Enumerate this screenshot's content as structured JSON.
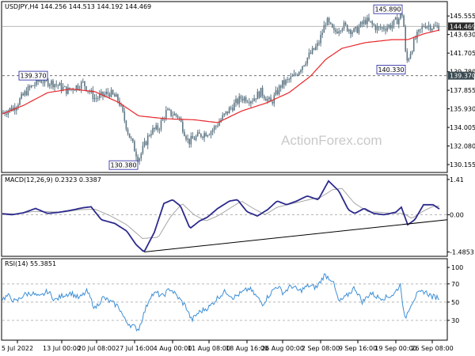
{
  "colors": {
    "candle": "#5f7785",
    "ma": "#e8262a",
    "macd": "#2c2a8c",
    "signal": "#9e9e9e",
    "rsi": "#3d8fd6",
    "callout_border": "#1e1ea0",
    "current_bg": "#2a2a2a",
    "level_bg": "#3a4a52"
  },
  "watermark": "ActionForex.com",
  "chart_data": [
    {
      "type": "candlestick",
      "header": "USDJPY,H4 144.256 144.513 144.192 144.469",
      "symbol": "USDJPY",
      "timeframe": "H4",
      "ohlc": {
        "open": 144.256,
        "high": 144.513,
        "low": 144.192,
        "close": 144.469
      },
      "ylim": [
        129.5,
        146.8
      ],
      "y_ticks": [
        "145.555",
        "143.630",
        "141.705",
        "139.780",
        "137.855",
        "135.930",
        "134.005",
        "132.080",
        "130.155"
      ],
      "current_price": "144.469",
      "horizontal_line": "139.370",
      "annotations": [
        "145.890",
        "140.330",
        "139.370",
        "130.380"
      ],
      "moving_average": "red line",
      "price_anchors": [
        [
          0,
          135.4
        ],
        [
          18,
          136.1
        ],
        [
          35,
          137.9
        ],
        [
          50,
          138.9
        ],
        [
          68,
          138.6
        ],
        [
          85,
          137.8
        ],
        [
          105,
          138.6
        ],
        [
          120,
          137.0
        ],
        [
          138,
          137.6
        ],
        [
          150,
          136.8
        ],
        [
          163,
          133.2
        ],
        [
          175,
          130.7
        ],
        [
          190,
          133.6
        ],
        [
          200,
          133.9
        ],
        [
          210,
          135.6
        ],
        [
          225,
          135.2
        ],
        [
          238,
          132.5
        ],
        [
          252,
          133.2
        ],
        [
          268,
          133.7
        ],
        [
          290,
          135.9
        ],
        [
          305,
          137.1
        ],
        [
          318,
          136.9
        ],
        [
          330,
          137.7
        ],
        [
          342,
          136.5
        ],
        [
          355,
          138.4
        ],
        [
          372,
          139.3
        ],
        [
          388,
          141.2
        ],
        [
          402,
          142.6
        ],
        [
          412,
          145.1
        ],
        [
          422,
          143.8
        ],
        [
          432,
          144.6
        ],
        [
          448,
          143.9
        ],
        [
          462,
          145.1
        ],
        [
          478,
          144.2
        ],
        [
          495,
          144.6
        ],
        [
          505,
          145.4
        ],
        [
          509,
          145.9
        ],
        [
          513,
          140.6
        ],
        [
          524,
          143.1
        ],
        [
          536,
          144.7
        ],
        [
          548,
          144.4
        ],
        [
          555,
          144.47
        ]
      ],
      "ma_anchors": [
        [
          0,
          135.3
        ],
        [
          30,
          136.3
        ],
        [
          60,
          137.6
        ],
        [
          90,
          138.0
        ],
        [
          120,
          137.7
        ],
        [
          150,
          136.6
        ],
        [
          175,
          135.2
        ],
        [
          210,
          134.9
        ],
        [
          245,
          134.8
        ],
        [
          275,
          134.5
        ],
        [
          305,
          135.7
        ],
        [
          335,
          136.5
        ],
        [
          365,
          137.6
        ],
        [
          392,
          139.3
        ],
        [
          412,
          141.1
        ],
        [
          432,
          142.2
        ],
        [
          462,
          142.8
        ],
        [
          495,
          143.1
        ],
        [
          515,
          143.1
        ],
        [
          535,
          143.7
        ],
        [
          555,
          144.1
        ]
      ]
    },
    {
      "type": "line",
      "header": "MACD(12,26,9) 0.2323 0.3387",
      "ylim": [
        -1.6,
        1.5
      ],
      "y_ticks": [
        "1.41",
        "0.00",
        "-1.4853"
      ],
      "macd_anchors": [
        [
          0,
          0.05
        ],
        [
          15,
          0.0
        ],
        [
          30,
          0.08
        ],
        [
          45,
          0.25
        ],
        [
          60,
          0.05
        ],
        [
          75,
          0.1
        ],
        [
          90,
          0.18
        ],
        [
          105,
          0.28
        ],
        [
          115,
          0.32
        ],
        [
          128,
          -0.2
        ],
        [
          145,
          -0.35
        ],
        [
          160,
          -0.65
        ],
        [
          172,
          -1.2
        ],
        [
          182,
          -1.49
        ],
        [
          195,
          -0.7
        ],
        [
          207,
          0.45
        ],
        [
          218,
          0.6
        ],
        [
          228,
          0.35
        ],
        [
          240,
          -0.55
        ],
        [
          252,
          -0.25
        ],
        [
          262,
          -0.1
        ],
        [
          275,
          0.25
        ],
        [
          290,
          0.55
        ],
        [
          300,
          0.6
        ],
        [
          312,
          0.12
        ],
        [
          325,
          -0.05
        ],
        [
          338,
          0.2
        ],
        [
          350,
          0.55
        ],
        [
          362,
          0.4
        ],
        [
          375,
          0.55
        ],
        [
          388,
          0.75
        ],
        [
          402,
          0.6
        ],
        [
          415,
          1.35
        ],
        [
          428,
          0.95
        ],
        [
          440,
          0.2
        ],
        [
          448,
          0.05
        ],
        [
          460,
          0.25
        ],
        [
          472,
          0.05
        ],
        [
          485,
          0.0
        ],
        [
          500,
          0.1
        ],
        [
          507,
          0.3
        ],
        [
          515,
          -0.4
        ],
        [
          524,
          -0.2
        ],
        [
          535,
          0.4
        ],
        [
          547,
          0.4
        ],
        [
          555,
          0.23
        ]
      ],
      "signal_anchors": [
        [
          0,
          0.06
        ],
        [
          20,
          0.03
        ],
        [
          40,
          0.12
        ],
        [
          60,
          0.12
        ],
        [
          80,
          0.1
        ],
        [
          100,
          0.2
        ],
        [
          120,
          0.22
        ],
        [
          140,
          -0.05
        ],
        [
          160,
          -0.4
        ],
        [
          180,
          -0.95
        ],
        [
          200,
          -0.9
        ],
        [
          215,
          -0.1
        ],
        [
          230,
          0.45
        ],
        [
          245,
          0.0
        ],
        [
          260,
          -0.25
        ],
        [
          275,
          -0.05
        ],
        [
          290,
          0.25
        ],
        [
          305,
          0.55
        ],
        [
          320,
          0.25
        ],
        [
          335,
          0.0
        ],
        [
          350,
          0.3
        ],
        [
          370,
          0.45
        ],
        [
          390,
          0.6
        ],
        [
          405,
          0.7
        ],
        [
          420,
          1.0
        ],
        [
          432,
          1.05
        ],
        [
          448,
          0.45
        ],
        [
          465,
          0.12
        ],
        [
          480,
          0.1
        ],
        [
          495,
          0.05
        ],
        [
          510,
          0.05
        ],
        [
          520,
          -0.15
        ],
        [
          535,
          0.15
        ],
        [
          548,
          0.35
        ],
        [
          555,
          0.34
        ]
      ],
      "trendline": [
        [
          182,
          -1.49
        ],
        [
          565,
          -0.2
        ]
      ]
    },
    {
      "type": "line",
      "header": "RSI(14) 55.3851",
      "ylim": [
        10,
        95
      ],
      "y_ticks": [
        "100",
        "70",
        "50",
        "30"
      ],
      "rsi_anchors": [
        [
          0,
          52
        ],
        [
          10,
          57
        ],
        [
          20,
          50
        ],
        [
          30,
          58
        ],
        [
          40,
          60
        ],
        [
          50,
          55
        ],
        [
          60,
          62
        ],
        [
          70,
          52
        ],
        [
          80,
          58
        ],
        [
          90,
          60
        ],
        [
          100,
          54
        ],
        [
          110,
          62
        ],
        [
          120,
          43
        ],
        [
          130,
          55
        ],
        [
          140,
          50
        ],
        [
          150,
          45
        ],
        [
          158,
          30
        ],
        [
          165,
          25
        ],
        [
          175,
          20
        ],
        [
          182,
          38
        ],
        [
          190,
          57
        ],
        [
          198,
          60
        ],
        [
          205,
          56
        ],
        [
          215,
          65
        ],
        [
          225,
          55
        ],
        [
          235,
          45
        ],
        [
          242,
          30
        ],
        [
          250,
          38
        ],
        [
          258,
          42
        ],
        [
          265,
          45
        ],
        [
          275,
          55
        ],
        [
          285,
          62
        ],
        [
          295,
          55
        ],
        [
          305,
          60
        ],
        [
          315,
          65
        ],
        [
          325,
          55
        ],
        [
          332,
          48
        ],
        [
          340,
          58
        ],
        [
          350,
          68
        ],
        [
          358,
          60
        ],
        [
          368,
          68
        ],
        [
          378,
          62
        ],
        [
          390,
          68
        ],
        [
          400,
          66
        ],
        [
          410,
          80
        ],
        [
          420,
          74
        ],
        [
          428,
          50
        ],
        [
          436,
          55
        ],
        [
          448,
          66
        ],
        [
          458,
          50
        ],
        [
          468,
          60
        ],
        [
          478,
          55
        ],
        [
          488,
          55
        ],
        [
          498,
          59
        ],
        [
          506,
          70
        ],
        [
          511,
          30
        ],
        [
          518,
          46
        ],
        [
          526,
          58
        ],
        [
          536,
          62
        ],
        [
          546,
          56
        ],
        [
          555,
          55
        ]
      ]
    }
  ],
  "x_axis": {
    "labels": [
      "5 Jul 2022",
      "13 Jul 00:00",
      "20 Jul 08:00",
      "27 Jul 16:00",
      "4 Aug 00:00",
      "11 Aug 08:00",
      "18 Aug 16:00",
      "26 Aug 00:00",
      "2 Sep 08:00",
      "9 Sep 16:00",
      "19 Sep 00:00",
      "26 Sep 08:00"
    ]
  }
}
